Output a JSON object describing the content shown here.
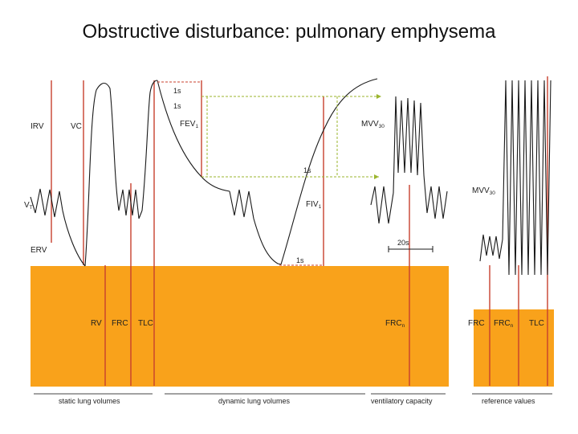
{
  "title": "Obstructive disturbance: pulmonary emphysema",
  "labels": {
    "irv": "IRV",
    "vc": "VC",
    "vt_main": "V",
    "vt_sub": "T",
    "erv": "ERV",
    "rv": "RV",
    "frc": "FRC",
    "tlc": "TLC",
    "fev_main": "FEV",
    "fev_sub": "1",
    "fiv_main": "FIV",
    "fiv_sub": "1",
    "mvv_main": "MVV",
    "mvv_sub": "30",
    "frcn_main": "FRC",
    "frcn_sub": "n",
    "one_s": "1s",
    "twenty_s": "20s",
    "ref_frc": "FRC",
    "ref_frcn_main": "FRC",
    "ref_frcn_sub": "n",
    "ref_tlc": "TLC",
    "ref_mvv_main": "MVV",
    "ref_mvv_sub": "30"
  },
  "bottom": {
    "static": "static lung volumes",
    "dynamic": "dynamic lung volumes",
    "ventilatory": "ventilatory capacity",
    "reference": "reference values"
  },
  "colors": {
    "orange_fill": "#F9A21B",
    "red_line": "#C8402E",
    "green_dash": "#9BB52E",
    "curve": "#1a1a1a"
  }
}
